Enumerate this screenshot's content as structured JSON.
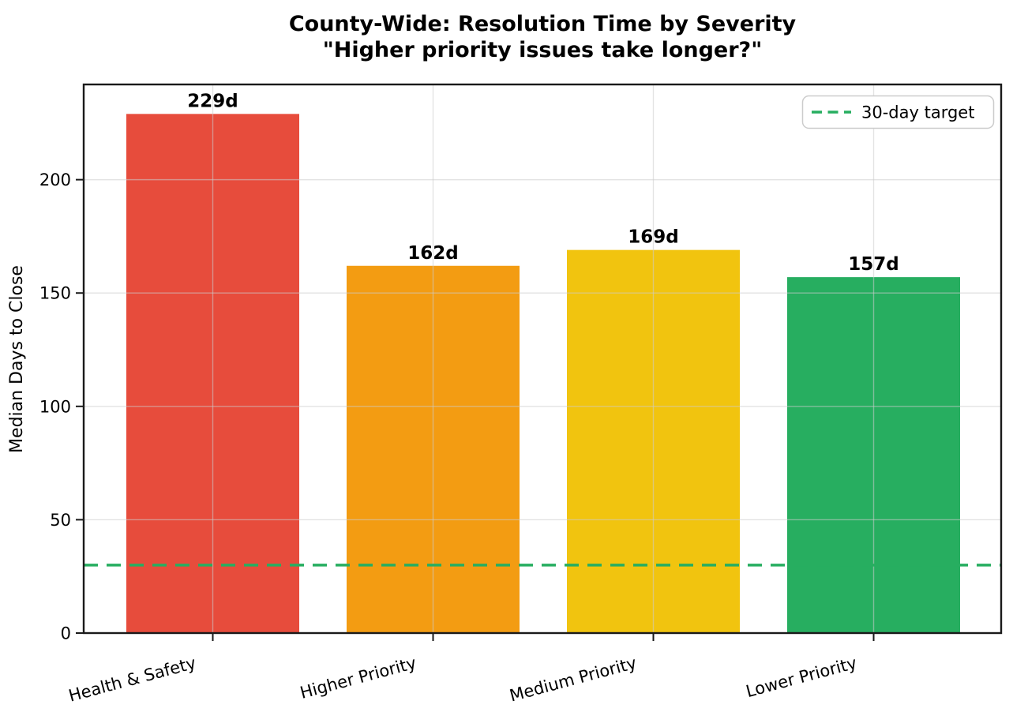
{
  "chart_data": {
    "type": "bar",
    "title": "County-Wide: Resolution Time by Severity",
    "subtitle": "\"Higher priority issues take longer?\"",
    "xlabel": "",
    "ylabel": "Median Days to Close",
    "categories": [
      "Health & Safety",
      "Higher Priority",
      "Medium Priority",
      "Lower Priority"
    ],
    "values": [
      229,
      162,
      169,
      157
    ],
    "bar_labels": [
      "229d",
      "162d",
      "169d",
      "157d"
    ],
    "bar_colors": [
      "#e74c3c",
      "#f39c12",
      "#f1c40f",
      "#27ae60"
    ],
    "ylim": [
      0,
      242
    ],
    "yticks": [
      0,
      50,
      100,
      150,
      200
    ],
    "grid": true,
    "reference_line": {
      "value": 30,
      "label": "30-day target",
      "color": "#27ae60",
      "style": "dashed"
    },
    "legend": {
      "position": "upper right",
      "entries": [
        "30-day target"
      ]
    }
  }
}
